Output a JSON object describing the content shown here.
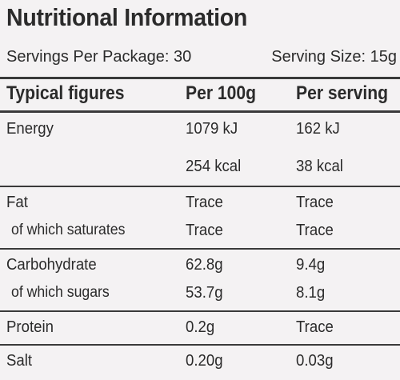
{
  "title": "Nutritional Information",
  "servings_per_package": "Servings Per Package: 30",
  "serving_size": "Serving Size: 15g",
  "columns": [
    "Typical figures",
    "Per 100g",
    "Per serving"
  ],
  "rows": [
    {
      "label": "Energy",
      "per100g": "1079 kJ",
      "perServing": "162 kJ"
    },
    {
      "label": "",
      "per100g": "254 kcal",
      "perServing": "38 kcal"
    },
    {
      "label": "Fat",
      "per100g": "Trace",
      "perServing": "Trace"
    },
    {
      "label": "of which saturates",
      "per100g": "Trace",
      "perServing": "Trace"
    },
    {
      "label": "Carbohydrate",
      "per100g": "62.8g",
      "perServing": "9.4g"
    },
    {
      "label": "of which sugars",
      "per100g": "53.7g",
      "perServing": "8.1g"
    },
    {
      "label": "Protein",
      "per100g": "0.2g",
      "perServing": "Trace"
    },
    {
      "label": "Salt",
      "per100g": "0.20g",
      "perServing": "0.03g"
    }
  ]
}
